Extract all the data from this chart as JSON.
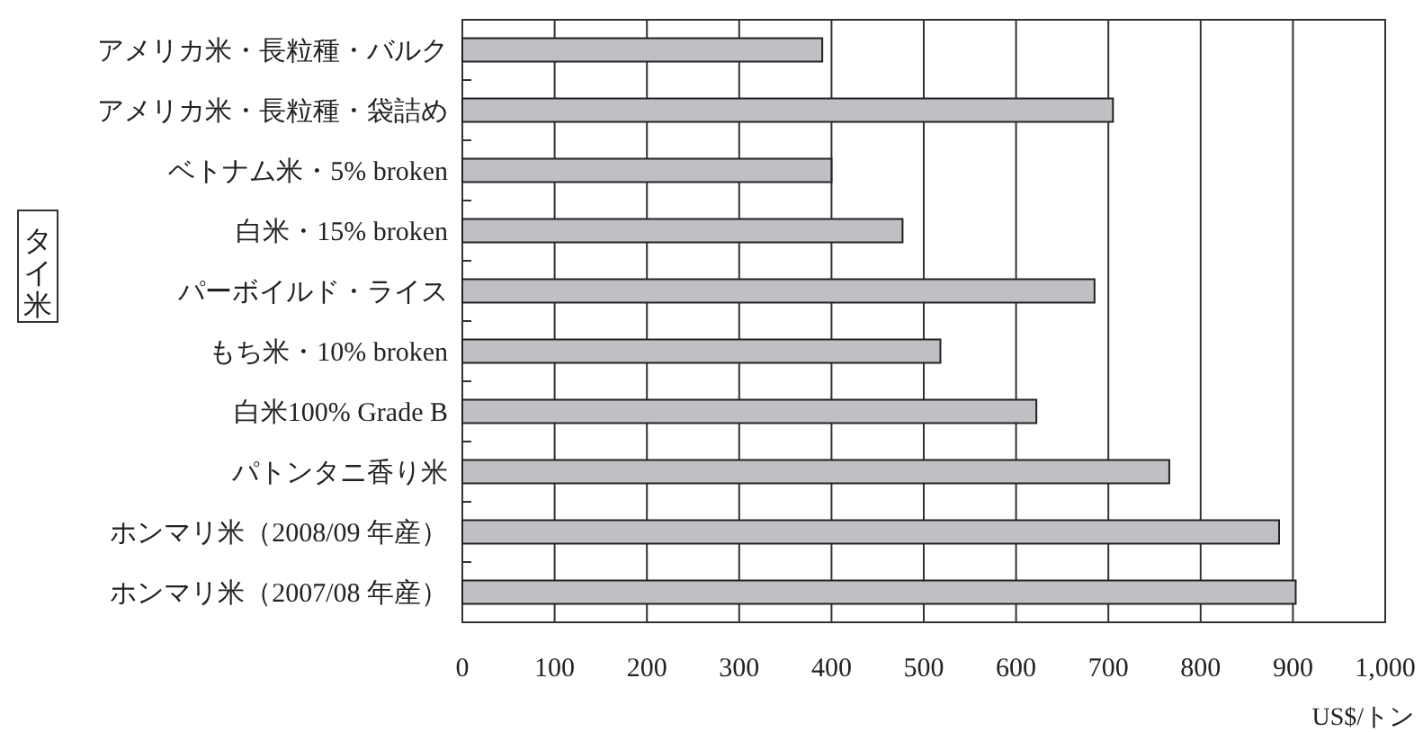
{
  "chart_data": {
    "type": "bar",
    "orientation": "horizontal",
    "categories": [
      "アメリカ米・長粒種・バルク",
      "アメリカ米・長粒種・袋詰め",
      "ベトナム米・5% broken",
      "白米・15% broken",
      "パーボイルド・ライス",
      "もち米・10% broken",
      "白米100% Grade B",
      "パトンタニ香り米",
      "ホンマリ米（2008/09 年産）",
      "ホンマリ米（2007/08 年産）"
    ],
    "values": [
      390,
      705,
      400,
      477,
      685,
      518,
      622,
      766,
      885,
      903
    ],
    "color": "#bfc0c4",
    "xlim": [
      0,
      1000
    ],
    "xticks": [
      0,
      100,
      200,
      300,
      400,
      500,
      600,
      700,
      800,
      900,
      {
        "value": 1000,
        "label": "1,000"
      }
    ],
    "xlabel": "US$/トン",
    "annotations": [
      "タイ米"
    ],
    "grid": "x"
  }
}
